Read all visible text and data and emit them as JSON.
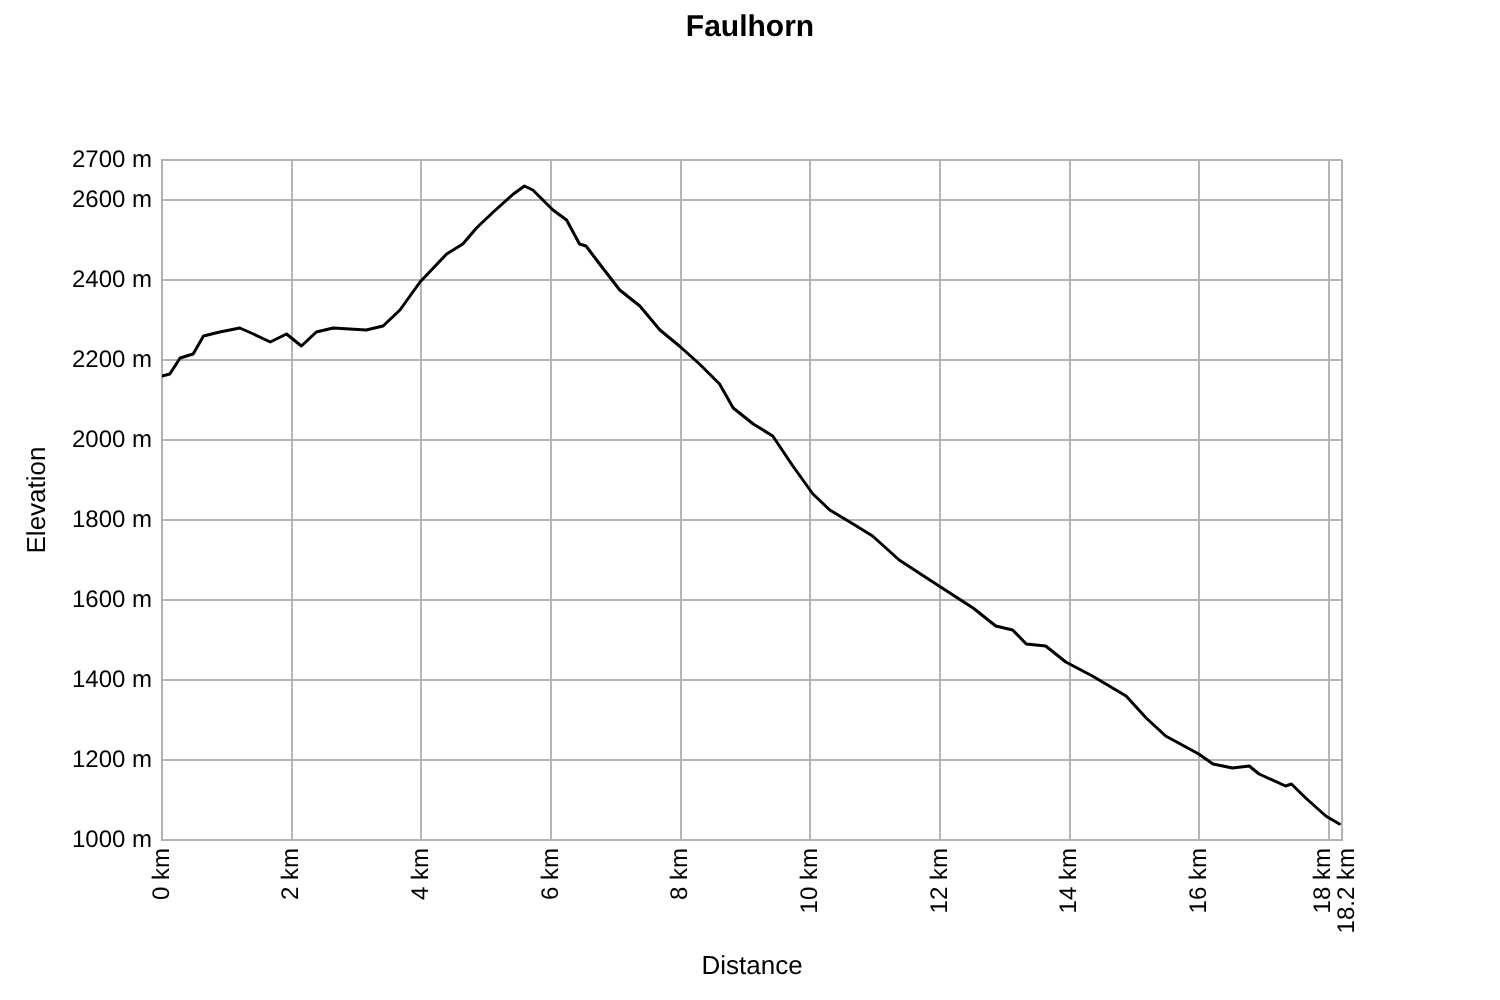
{
  "chart_data": {
    "type": "line",
    "title": "Faulhorn",
    "xlabel": "Distance",
    "ylabel": "Elevation",
    "x": [
      0,
      0.12,
      0.28,
      0.48,
      0.64,
      0.89,
      1.2,
      1.41,
      1.67,
      1.92,
      2.15,
      2.38,
      2.64,
      3.15,
      3.41,
      3.67,
      3.98,
      4.39,
      4.64,
      4.85,
      5.11,
      5.42,
      5.59,
      5.72,
      6.03,
      6.24,
      6.44,
      6.54,
      6.75,
      7.06,
      7.37,
      7.68,
      7.98,
      8.29,
      8.6,
      8.81,
      9.12,
      9.42,
      9.73,
      10.04,
      10.3,
      10.66,
      10.96,
      11.37,
      11.89,
      12.51,
      12.86,
      13.12,
      13.33,
      13.63,
      13.94,
      14.35,
      14.87,
      15.18,
      15.48,
      15.99,
      16.21,
      16.51,
      16.77,
      16.92,
      17.33,
      17.42,
      17.64,
      17.95,
      18.16
    ],
    "series": [
      {
        "color": "#000000",
        "values": [
          2160,
          2165,
          2205,
          2215,
          2260,
          2270,
          2280,
          2265,
          2245,
          2265,
          2235,
          2270,
          2280,
          2275,
          2285,
          2325,
          2395,
          2465,
          2490,
          2530,
          2570,
          2615,
          2635,
          2625,
          2575,
          2550,
          2490,
          2485,
          2440,
          2375,
          2335,
          2275,
          2235,
          2190,
          2140,
          2080,
          2040,
          2010,
          1935,
          1865,
          1825,
          1790,
          1760,
          1700,
          1645,
          1580,
          1535,
          1525,
          1490,
          1485,
          1445,
          1410,
          1360,
          1305,
          1260,
          1215,
          1190,
          1180,
          1185,
          1165,
          1135,
          1140,
          1105,
          1060,
          1040
        ]
      }
    ],
    "xlim": [
      0,
      18.2
    ],
    "ylim": [
      1000,
      2700
    ],
    "xticks": [
      {
        "value": 0,
        "label": "0 km"
      },
      {
        "value": 2,
        "label": "2 km"
      },
      {
        "value": 4,
        "label": "4 km"
      },
      {
        "value": 6,
        "label": "6 km"
      },
      {
        "value": 8,
        "label": "8 km"
      },
      {
        "value": 10,
        "label": "10 km"
      },
      {
        "value": 12,
        "label": "12 km"
      },
      {
        "value": 14,
        "label": "14 km"
      },
      {
        "value": 16,
        "label": "16 km"
      },
      {
        "value": 18,
        "label": "18 km"
      },
      {
        "value": 18.2,
        "label": "18.2 km"
      }
    ],
    "yticks": [
      {
        "value": 1000,
        "label": "1000 m"
      },
      {
        "value": 1200,
        "label": "1200 m"
      },
      {
        "value": 1400,
        "label": "1400 m"
      },
      {
        "value": 1600,
        "label": "1600 m"
      },
      {
        "value": 1800,
        "label": "1800 m"
      },
      {
        "value": 2000,
        "label": "2000 m"
      },
      {
        "value": 2200,
        "label": "2200 m"
      },
      {
        "value": 2400,
        "label": "2400 m"
      },
      {
        "value": 2600,
        "label": "2600 m"
      },
      {
        "value": 2700,
        "label": "2700 m"
      }
    ],
    "grid": true,
    "legend": false,
    "marker": "none",
    "line_style": "solid"
  }
}
